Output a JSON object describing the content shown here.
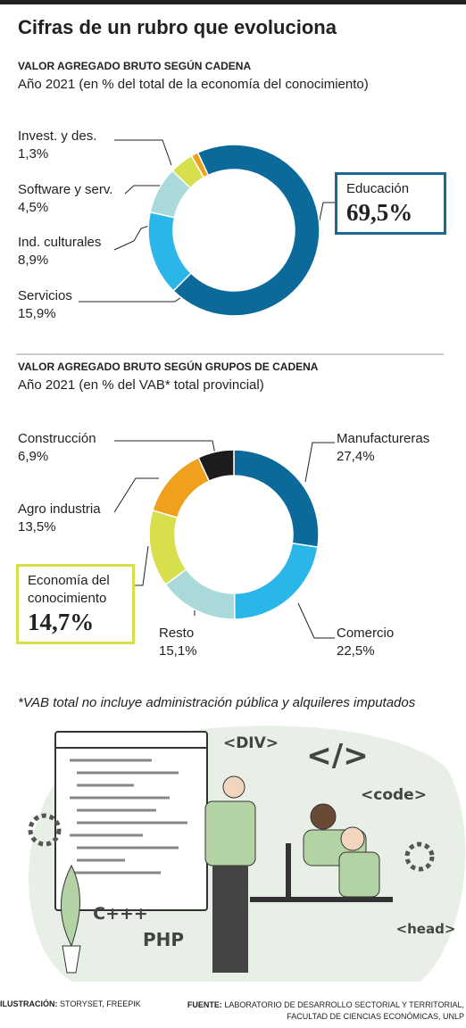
{
  "title": "Cifras de un rubro que evoluciona",
  "chart_data": [
    {
      "type": "donut",
      "title": "VALOR AGREGADO BRUTO SEGÚN CADENA",
      "subtitle": "Año 2021 (en % del total de la economía del conocimiento)",
      "categories": [
        "Educación",
        "Servicios",
        "Ind. culturales",
        "Software y serv.",
        "Invest. y des."
      ],
      "values": [
        69.5,
        15.9,
        8.9,
        4.5,
        1.3
      ],
      "value_labels": [
        "69,5%",
        "15,9%",
        "8,9%",
        "4,5%",
        "1,3%"
      ],
      "colors": [
        "#0b6a99",
        "#2ab6e9",
        "#a9d9d8",
        "#d8df4c",
        "#f0a01f"
      ]
    },
    {
      "type": "donut",
      "title": "VALOR AGREGADO BRUTO SEGÚN GRUPOS DE CADENA",
      "subtitle": "Año 2021 (en % del VAB* total provincial)",
      "categories": [
        "Manufactureras",
        "Comercio",
        "Resto",
        "Economía del conocimiento",
        "Agro industria",
        "Construcción"
      ],
      "values": [
        27.4,
        22.5,
        15.1,
        14.7,
        13.5,
        6.9
      ],
      "value_labels": [
        "27,4%",
        "22,5%",
        "15,1%",
        "14,7%",
        "13,5%",
        "6,9%"
      ],
      "colors": [
        "#0b6a99",
        "#2ab6e9",
        "#a9d9d8",
        "#d8df4c",
        "#f0a01f",
        "#1c1c1f"
      ]
    }
  ],
  "footnote": "*VAB total no incluye administración pública y alquileres imputados",
  "illustration": {
    "texts": [
      "<DIV>",
      "</>",
      "<code>",
      "<head>",
      "C+++",
      "PHP"
    ]
  },
  "credits": {
    "illustration_label": "ILUSTRACIÓN:",
    "illustration": "STORYSET, FREEPIK",
    "source_label": "FUENTE:",
    "source": "LABORATORIO DE DESARROLLO SECTORIAL Y TERRITORIAL,",
    "source_line2": "FACULTAD DE CIENCIAS ECONÓMICAS, UNLP"
  }
}
